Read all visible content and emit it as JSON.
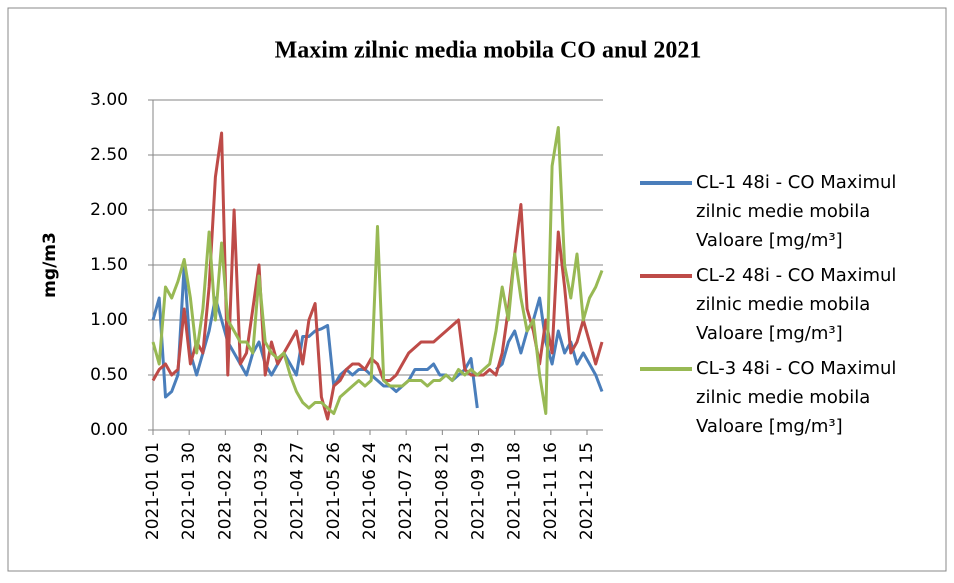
{
  "chart_data": {
    "type": "line",
    "title": "Maxim zilnic media mobila CO anul 2021",
    "y_label": "mg/m3",
    "x": [
      "2021-01 01",
      "2021-01 06",
      "2021-01 11",
      "2021-01 16",
      "2021-01 21",
      "2021-01 26",
      "2021-01 31",
      "2021-02 05",
      "2021-02 10",
      "2021-02 15",
      "2021-02 20",
      "2021-02 25",
      "2021-03 02",
      "2021-03 07",
      "2021-03 12",
      "2021-03 17",
      "2021-03 22",
      "2021-03 27",
      "2021-04 01",
      "2021-04 06",
      "2021-04 11",
      "2021-04 16",
      "2021-04 21",
      "2021-04 26",
      "2021-05 01",
      "2021-05 06",
      "2021-05 11",
      "2021-05 16",
      "2021-05 21",
      "2021-05 26",
      "2021-05 31",
      "2021-06 05",
      "2021-06 10",
      "2021-06 15",
      "2021-06 20",
      "2021-06 25",
      "2021-06 30",
      "2021-07 05",
      "2021-07 10",
      "2021-07 15",
      "2021-07 20",
      "2021-07 25",
      "2021-07 30",
      "2021-08 04",
      "2021-08 09",
      "2021-08 14",
      "2021-08 19",
      "2021-08 24",
      "2021-08 29",
      "2021-09 03",
      "2021-09 08",
      "2021-09 13",
      "2021-09 18",
      "2021-09 23",
      "2021-09 28",
      "2021-10 03",
      "2021-10 08",
      "2021-10 13",
      "2021-10 18",
      "2021-10 23",
      "2021-10 28",
      "2021-11 02",
      "2021-11 07",
      "2021-11 12",
      "2021-11 17",
      "2021-11 22",
      "2021-11 27",
      "2021-12 02",
      "2021-12 07",
      "2021-12 12",
      "2021-12 17",
      "2021-12 22",
      "2021-12 27"
    ],
    "xticks": [
      "2021-01 01",
      "2021-01 30",
      "2021-02 28",
      "2021-03 29",
      "2021-04 27",
      "2021-05 26",
      "2021-06 24",
      "2021-07 23",
      "2021-08 21",
      "2021-09 19",
      "2021-10 18",
      "2021-11 16",
      "2021-12 15"
    ],
    "series": [
      {
        "name": "CL-1 48i - CO Maximul zilnic medie mobila Valoare [mg/m³]",
        "color": "#4a7ebb",
        "values": [
          1.0,
          1.2,
          0.3,
          0.35,
          0.5,
          1.5,
          0.7,
          0.5,
          0.7,
          0.9,
          1.2,
          1.0,
          0.8,
          0.7,
          0.6,
          0.5,
          0.7,
          0.8,
          0.6,
          0.5,
          0.6,
          0.7,
          0.6,
          0.5,
          0.85,
          0.85,
          0.9,
          0.92,
          0.95,
          0.4,
          0.5,
          0.55,
          0.5,
          0.55,
          0.55,
          0.5,
          0.45,
          0.4,
          0.4,
          0.35,
          0.4,
          0.45,
          0.55,
          0.55,
          0.55,
          0.6,
          0.5,
          0.5,
          0.45,
          0.5,
          0.55,
          0.65,
          0.2,
          null,
          null,
          0.55,
          0.6,
          0.8,
          0.9,
          0.7,
          0.9,
          1.0,
          1.2,
          0.8,
          0.6,
          0.9,
          0.7,
          0.8,
          0.6,
          0.7,
          0.6,
          0.5,
          0.35
        ]
      },
      {
        "name": "CL-2 48i - CO Maximul zilnic medie mobila Valoare [mg/m³]",
        "color": "#be4b48",
        "values": [
          0.45,
          0.55,
          0.6,
          0.5,
          0.55,
          1.1,
          0.6,
          0.8,
          0.7,
          1.3,
          2.3,
          2.7,
          0.5,
          2.0,
          0.6,
          0.7,
          1.1,
          1.5,
          0.5,
          0.8,
          0.6,
          0.7,
          0.8,
          0.9,
          0.6,
          1.0,
          1.15,
          0.3,
          0.1,
          0.4,
          0.45,
          0.55,
          0.6,
          0.6,
          0.55,
          0.65,
          0.6,
          0.45,
          0.45,
          0.5,
          0.6,
          0.7,
          0.75,
          0.8,
          0.8,
          0.8,
          0.85,
          0.9,
          0.95,
          1.0,
          0.55,
          0.5,
          0.5,
          0.5,
          0.55,
          0.5,
          0.7,
          1.1,
          1.6,
          2.05,
          1.1,
          0.9,
          0.6,
          1.0,
          0.7,
          1.8,
          1.3,
          0.7,
          0.8,
          1.0,
          0.8,
          0.6,
          0.8
        ]
      },
      {
        "name": "CL-3 48i - CO Maximul zilnic medie mobila Valoare [mg/m³]",
        "color": "#98b954",
        "values": [
          0.8,
          0.6,
          1.3,
          1.2,
          1.35,
          1.55,
          1.2,
          0.7,
          1.1,
          1.8,
          1.0,
          1.7,
          1.0,
          0.9,
          0.8,
          0.8,
          0.7,
          1.4,
          0.8,
          0.7,
          0.65,
          0.7,
          0.5,
          0.35,
          0.25,
          0.2,
          0.25,
          0.25,
          0.2,
          0.15,
          0.3,
          0.35,
          0.4,
          0.45,
          0.4,
          0.45,
          1.85,
          0.45,
          0.4,
          0.4,
          0.4,
          0.45,
          0.45,
          0.45,
          0.4,
          0.45,
          0.45,
          0.5,
          0.45,
          0.55,
          0.5,
          0.55,
          0.5,
          0.55,
          0.6,
          0.9,
          1.3,
          1.0,
          1.6,
          1.2,
          0.9,
          1.0,
          0.5,
          0.15,
          2.4,
          2.75,
          1.5,
          1.2,
          1.6,
          1.0,
          1.2,
          1.3,
          1.45
        ]
      }
    ],
    "ylim": [
      0,
      3
    ],
    "yticks": [
      {
        "value": 0,
        "label": "0.00"
      },
      {
        "value": 0.5,
        "label": "0.50"
      },
      {
        "value": 1,
        "label": "1.00"
      },
      {
        "value": 1.5,
        "label": "1.50"
      },
      {
        "value": 2,
        "label": "2.00"
      },
      {
        "value": 2.5,
        "label": "2.50"
      },
      {
        "value": 3,
        "label": "3.00"
      }
    ],
    "grid": true,
    "legend": "right"
  }
}
